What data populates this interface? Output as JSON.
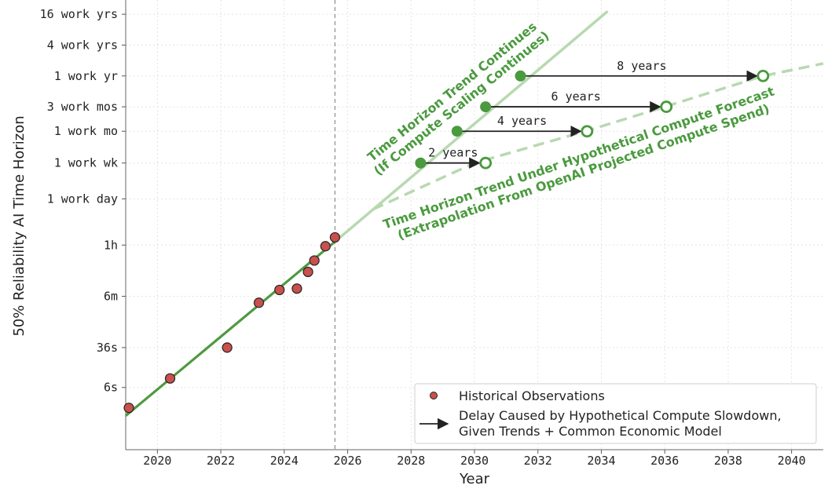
{
  "chart_data": {
    "type": "scatter",
    "xlabel": "Year",
    "ylabel": "50% Reliability AI Time Horizon",
    "xlim": [
      2019.0,
      2041.0
    ],
    "y_scale": "log",
    "y_unit": "minutes",
    "x_ticks": [
      2020,
      2022,
      2024,
      2026,
      2028,
      2030,
      2032,
      2034,
      2036,
      2038,
      2040
    ],
    "y_ticks": [
      {
        "label": "16 work yrs",
        "minutes": 1920000
      },
      {
        "label": "4 work yrs",
        "minutes": 480000
      },
      {
        "label": "1 work yr",
        "minutes": 120000
      },
      {
        "label": "3 work mos",
        "minutes": 30000
      },
      {
        "label": "1 work mo",
        "minutes": 10000
      },
      {
        "label": "1 work wk",
        "minutes": 2400
      },
      {
        "label": "1 work day",
        "minutes": 480
      },
      {
        "label": "1h",
        "minutes": 60
      },
      {
        "label": "6m",
        "minutes": 6
      },
      {
        "label": "36s",
        "minutes": 0.6
      },
      {
        "label": "6s",
        "minutes": 0.1
      }
    ],
    "grid": true,
    "vline_year": 2025.6,
    "historical_observations": [
      {
        "x": 2019.1,
        "y": 0.04
      },
      {
        "x": 2020.4,
        "y": 0.15
      },
      {
        "x": 2022.2,
        "y": 0.6
      },
      {
        "x": 2023.2,
        "y": 4.5
      },
      {
        "x": 2023.85,
        "y": 8
      },
      {
        "x": 2024.4,
        "y": 8.5
      },
      {
        "x": 2024.75,
        "y": 18
      },
      {
        "x": 2024.95,
        "y": 30
      },
      {
        "x": 2025.3,
        "y": 57
      },
      {
        "x": 2025.6,
        "y": 85
      }
    ],
    "trend_fit": {
      "x": [
        2019.0,
        2025.6
      ],
      "y": [
        0.028,
        70
      ]
    },
    "continued_trend": {
      "x": [
        2025.6,
        2034.2
      ],
      "y": [
        70,
        2200000
      ]
    },
    "slowdown_trend": {
      "x": [
        2026.8,
        2030.0,
        2033.5,
        2036.0,
        2039.1,
        2041.0
      ],
      "y": [
        300,
        2400,
        10000,
        30000,
        120000,
        210000
      ]
    },
    "delays": [
      {
        "label": "2 years",
        "start": {
          "x": 2028.3,
          "y": 2400
        },
        "end": {
          "x": 2030.35,
          "y": 2400
        }
      },
      {
        "label": "4 years",
        "start": {
          "x": 2029.45,
          "y": 10000
        },
        "end": {
          "x": 2033.55,
          "y": 10000
        }
      },
      {
        "label": "6 years",
        "start": {
          "x": 2030.35,
          "y": 30000
        },
        "end": {
          "x": 2036.05,
          "y": 30000
        }
      },
      {
        "label": "8 years",
        "start": {
          "x": 2031.45,
          "y": 120000
        },
        "end": {
          "x": 2039.1,
          "y": 120000
        }
      }
    ],
    "annotations": {
      "continued_line1": "Time Horizon Trend Continues",
      "continued_line2": "(If Compute Scaling Continues)",
      "slowdown_line1": "Time Horizon Trend Under Hypothetical Compute Forecast",
      "slowdown_line2": "(Extrapolation From OpenAI Projected Compute Spend)"
    },
    "legend": {
      "placement": "lower-right",
      "entries": [
        {
          "label": "Historical Observations",
          "marker": "dot"
        },
        {
          "label_line1": "Delay Caused by Hypothetical Compute Slowdown,",
          "label_line2": "Given Trends + Common Economic Model",
          "marker": "arrow"
        }
      ]
    },
    "colors": {
      "observation_fill": "#c9504c",
      "trend_dark": "#4f9a42",
      "trend_light": "#b8d9b0",
      "point_green": "#4a9a3e",
      "vline": "#999999"
    }
  }
}
